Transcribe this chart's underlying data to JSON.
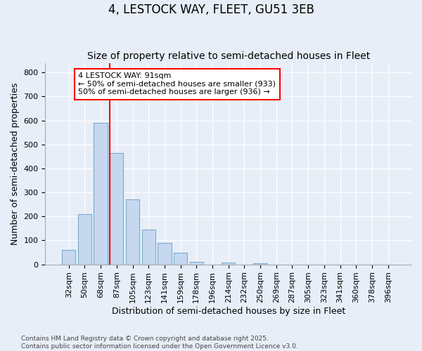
{
  "title": "4, LESTOCK WAY, FLEET, GU51 3EB",
  "subtitle": "Size of property relative to semi-detached houses in Fleet",
  "xlabel": "Distribution of semi-detached houses by size in Fleet",
  "ylabel": "Number of semi-detached properties",
  "categories": [
    "32sqm",
    "50sqm",
    "68sqm",
    "87sqm",
    "105sqm",
    "123sqm",
    "141sqm",
    "159sqm",
    "178sqm",
    "196sqm",
    "214sqm",
    "232sqm",
    "250sqm",
    "269sqm",
    "287sqm",
    "305sqm",
    "323sqm",
    "341sqm",
    "360sqm",
    "378sqm",
    "396sqm"
  ],
  "values": [
    60,
    210,
    590,
    465,
    270,
    145,
    90,
    50,
    10,
    0,
    8,
    0,
    5,
    0,
    0,
    0,
    0,
    0,
    0,
    0,
    0
  ],
  "bar_color": "#c5d8f0",
  "bar_edge_color": "#7aabcc",
  "vline_color": "red",
  "vline_pos": 2.575,
  "annotation_text": "4 LESTOCK WAY: 91sqm\n← 50% of semi-detached houses are smaller (933)\n50% of semi-detached houses are larger (936) →",
  "annotation_box_color": "white",
  "annotation_box_edge_color": "red",
  "ylim": [
    0,
    840
  ],
  "yticks": [
    0,
    100,
    200,
    300,
    400,
    500,
    600,
    700,
    800
  ],
  "footer_text": "Contains HM Land Registry data © Crown copyright and database right 2025.\nContains public sector information licensed under the Open Government Licence v3.0.",
  "bg_color": "#e8eef8",
  "plot_bg_color": "#e8eef8",
  "grid_color": "white",
  "title_fontsize": 12,
  "subtitle_fontsize": 10,
  "label_fontsize": 9,
  "tick_fontsize": 8,
  "annotation_fontsize": 8,
  "footer_fontsize": 6.5
}
